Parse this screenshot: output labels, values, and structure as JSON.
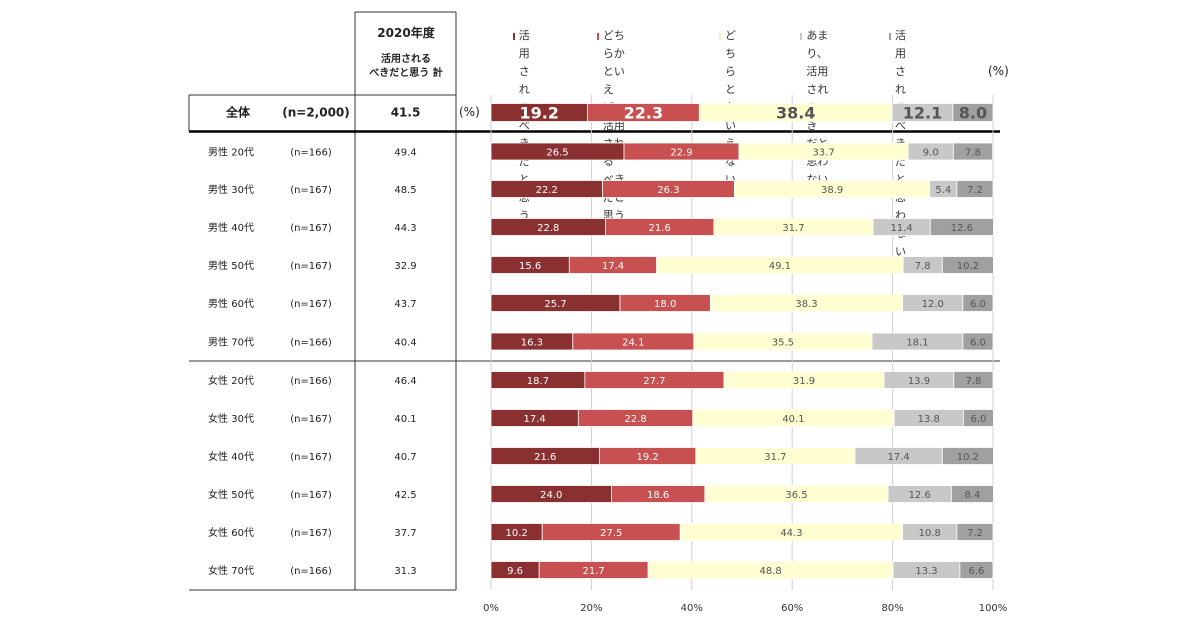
{
  "header": {
    "year": "2020年度",
    "col_title_line1": "活用される",
    "col_title_line2": "べきだと思う 計"
  },
  "unit_left": "(%)",
  "unit_right": "(%)",
  "chart_data": {
    "type": "bar",
    "orientation": "horizontal",
    "stacked": true,
    "xlim": [
      0,
      100
    ],
    "x_ticks": [
      "0%",
      "20%",
      "40%",
      "60%",
      "80%",
      "100%"
    ],
    "legend_position": "top",
    "series": [
      {
        "name_lines": [
          "活用される",
          "べきだと思う"
        ],
        "color": "#8B3030",
        "label_color": "#ffffff"
      },
      {
        "name_lines": [
          "どちらかといえば、",
          "活用される",
          "べきだと思う"
        ],
        "color": "#C85050",
        "label_color": "#ffffff"
      },
      {
        "name_lines": [
          "どちらとも",
          "いえない"
        ],
        "color": "#FFFFD2",
        "label_color": "#555555"
      },
      {
        "name_lines": [
          "あまり、",
          "活用されるべき",
          "だと思わない"
        ],
        "color": "#C8C8C8",
        "label_color": "#555555"
      },
      {
        "name_lines": [
          "活用される",
          "べきだと",
          "思わない"
        ],
        "color": "#A0A0A0",
        "label_color": "#555555"
      }
    ],
    "rows": [
      {
        "group": "全体",
        "n": "(n=2,000)",
        "total": "41.5",
        "values": [
          19.2,
          22.3,
          38.4,
          12.1,
          8.0
        ],
        "labels": [
          "19.2",
          "22.3",
          "38.4",
          "12.1",
          "8.0"
        ],
        "summary": true
      },
      {
        "group": "男性 20代",
        "n": "(n=166)",
        "total": "49.4",
        "values": [
          26.5,
          22.9,
          33.7,
          9.0,
          7.8
        ],
        "labels": [
          "26.5",
          "22.9",
          "33.7",
          "9.0",
          "7.8"
        ]
      },
      {
        "group": "男性 30代",
        "n": "(n=167)",
        "total": "48.5",
        "values": [
          22.2,
          26.3,
          38.9,
          5.4,
          7.2
        ],
        "labels": [
          "22.2",
          "26.3",
          "38.9",
          "5.4",
          "7.2"
        ]
      },
      {
        "group": "男性 40代",
        "n": "(n=167)",
        "total": "44.3",
        "values": [
          22.8,
          21.6,
          31.7,
          11.4,
          12.6
        ],
        "labels": [
          "22.8",
          "21.6",
          "31.7",
          "11.4",
          "12.6"
        ]
      },
      {
        "group": "男性 50代",
        "n": "(n=167)",
        "total": "32.9",
        "values": [
          15.6,
          17.4,
          49.1,
          7.8,
          10.2
        ],
        "labels": [
          "15.6",
          "17.4",
          "49.1",
          "7.8",
          "10.2"
        ]
      },
      {
        "group": "男性 60代",
        "n": "(n=167)",
        "total": "43.7",
        "values": [
          25.7,
          18.0,
          38.3,
          12.0,
          6.0
        ],
        "labels": [
          "25.7",
          "18.0",
          "38.3",
          "12.0",
          "6.0"
        ]
      },
      {
        "group": "男性 70代",
        "n": "(n=166)",
        "total": "40.4",
        "values": [
          16.3,
          24.1,
          35.5,
          18.1,
          6.0
        ],
        "labels": [
          "16.3",
          "24.1",
          "35.5",
          "18.1",
          "6.0"
        ]
      },
      {
        "group": "女性 20代",
        "n": "(n=166)",
        "total": "46.4",
        "values": [
          18.7,
          27.7,
          31.9,
          13.9,
          7.8
        ],
        "labels": [
          "18.7",
          "27.7",
          "31.9",
          "13.9",
          "7.8"
        ]
      },
      {
        "group": "女性 30代",
        "n": "(n=167)",
        "total": "40.1",
        "values": [
          17.4,
          22.8,
          40.1,
          13.8,
          6.0
        ],
        "labels": [
          "17.4",
          "22.8",
          "40.1",
          "13.8",
          "6.0"
        ]
      },
      {
        "group": "女性 40代",
        "n": "(n=167)",
        "total": "40.7",
        "values": [
          21.6,
          19.2,
          31.7,
          17.4,
          10.2
        ],
        "labels": [
          "21.6",
          "19.2",
          "31.7",
          "17.4",
          "10.2"
        ]
      },
      {
        "group": "女性 50代",
        "n": "(n=167)",
        "total": "42.5",
        "values": [
          24.0,
          18.6,
          36.5,
          12.6,
          8.4
        ],
        "labels": [
          "24.0",
          "18.6",
          "36.5",
          "12.6",
          "8.4"
        ]
      },
      {
        "group": "女性 60代",
        "n": "(n=167)",
        "total": "37.7",
        "values": [
          10.2,
          27.5,
          44.3,
          10.8,
          7.2
        ],
        "labels": [
          "10.2",
          "27.5",
          "44.3",
          "10.8",
          "7.2"
        ]
      },
      {
        "group": "女性 70代",
        "n": "(n=166)",
        "total": "31.3",
        "values": [
          9.6,
          21.7,
          48.8,
          13.3,
          6.6
        ],
        "labels": [
          "9.6",
          "21.7",
          "48.8",
          "13.3",
          "6.6"
        ]
      }
    ]
  }
}
